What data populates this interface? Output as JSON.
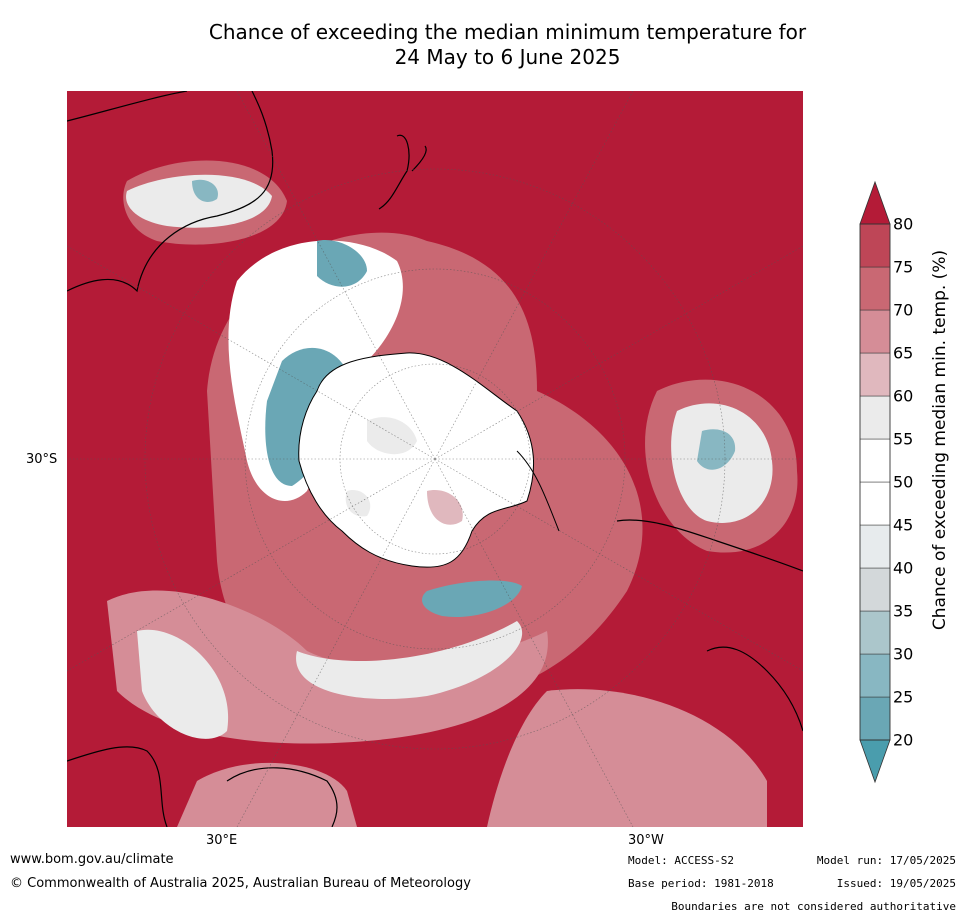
{
  "title": {
    "line1": "Chance of exceeding the median minimum temperature for",
    "line2": "24 May to 6 June 2025"
  },
  "map": {
    "lon_labels": [
      "30°E",
      "30°W"
    ],
    "lat_labels": [
      "30°S"
    ]
  },
  "colorbar": {
    "label": "Chance of exceeding median min. temp. (%)",
    "ticks": [
      "20",
      "25",
      "30",
      "35",
      "40",
      "45",
      "50",
      "55",
      "60",
      "65",
      "70",
      "75",
      "80"
    ],
    "colors": [
      "#6aa7b5",
      "#88b7c2",
      "#abc6cb",
      "#d3d8da",
      "#e7ebed",
      "#ffffff",
      "#ffffff",
      "#ebebeb",
      "#e0b8be",
      "#d58d97",
      "#c96873",
      "#be4657",
      "#b41b37"
    ]
  },
  "footer": {
    "website": "www.bom.gov.au/climate",
    "copyright": "© Commonwealth of Australia 2025, Australian Bureau of Meteorology",
    "model": "Model: ACCESS-S2",
    "base_period": "Base period: 1981-2018",
    "model_run": "Model run: 17/05/2025",
    "issued": "Issued: 19/05/2025",
    "disclaimer": "Boundaries are not considered authoritative"
  }
}
